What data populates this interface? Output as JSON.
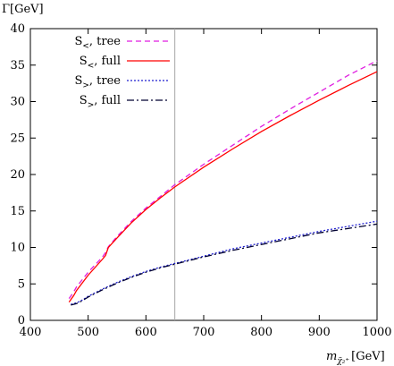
{
  "chart_data": {
    "type": "line",
    "ylabel": "Γ[GeV]",
    "xlabel": {
      "prefix": "m",
      "subscript": "χ̃₂⁺",
      "unit": "[GeV]"
    },
    "xlim": [
      400,
      1000
    ],
    "ylim": [
      0,
      40
    ],
    "xticks": [
      400,
      500,
      600,
      700,
      800,
      900,
      1000
    ],
    "yticks": [
      0,
      5,
      10,
      15,
      20,
      25,
      30,
      35,
      40
    ],
    "xtick_labels": [
      "400",
      "500",
      "600",
      "700",
      "800",
      "900",
      "1000"
    ],
    "ytick_labels": [
      "0",
      "5",
      "10",
      "15",
      "20",
      "25",
      "30",
      "35",
      "40"
    ],
    "vline": 650,
    "legend_position": "top-left",
    "series": [
      {
        "name": "S<, tree",
        "legend": {
          "base": "S",
          "sub": "<",
          "suffix": ", tree"
        },
        "color": "#e01ee0",
        "dash": "6,4",
        "x": [
          467,
          475,
          480,
          500,
          525,
          530,
          535,
          550,
          575,
          600,
          625,
          650,
          700,
          750,
          800,
          850,
          900,
          950,
          1000
        ],
        "y": [
          3.0,
          3.9,
          4.6,
          6.6,
          8.7,
          9.3,
          10.1,
          11.5,
          13.6,
          15.4,
          17.0,
          18.6,
          21.4,
          24.0,
          26.6,
          29.0,
          31.3,
          33.6,
          35.6
        ]
      },
      {
        "name": "S<, full",
        "legend": {
          "base": "S",
          "sub": "<",
          "suffix": ", full"
        },
        "color": "#ff0000",
        "dash": "",
        "x": [
          467,
          475,
          480,
          500,
          525,
          530,
          535,
          550,
          575,
          600,
          625,
          650,
          700,
          750,
          800,
          850,
          900,
          950,
          1000
        ],
        "y": [
          2.5,
          3.4,
          4.1,
          6.2,
          8.4,
          8.9,
          10.0,
          11.3,
          13.4,
          15.2,
          16.8,
          18.3,
          21.0,
          23.5,
          25.9,
          28.1,
          30.2,
          32.2,
          34.1
        ]
      },
      {
        "name": "S>, tree",
        "legend": {
          "base": "S",
          "sub": ">",
          "suffix": ", tree"
        },
        "color": "#1f1fd0",
        "dash": "2,2",
        "x": [
          470,
          480,
          490,
          500,
          525,
          550,
          575,
          600,
          625,
          650,
          700,
          750,
          800,
          850,
          900,
          950,
          1000
        ],
        "y": [
          2.2,
          2.4,
          2.8,
          3.3,
          4.3,
          5.2,
          6.0,
          6.7,
          7.3,
          7.8,
          8.8,
          9.8,
          10.6,
          11.4,
          12.2,
          12.9,
          13.6
        ]
      },
      {
        "name": "S>, full",
        "legend": {
          "base": "S",
          "sub": ">",
          "suffix": ", full"
        },
        "color": "#000030",
        "dash": "8,3,2,3",
        "x": [
          470,
          480,
          490,
          500,
          525,
          550,
          575,
          600,
          625,
          650,
          700,
          750,
          800,
          850,
          900,
          950,
          1000
        ],
        "y": [
          2.1,
          2.3,
          2.7,
          3.2,
          4.2,
          5.1,
          5.9,
          6.6,
          7.2,
          7.7,
          8.7,
          9.6,
          10.4,
          11.2,
          12.0,
          12.6,
          13.2
        ]
      }
    ]
  }
}
